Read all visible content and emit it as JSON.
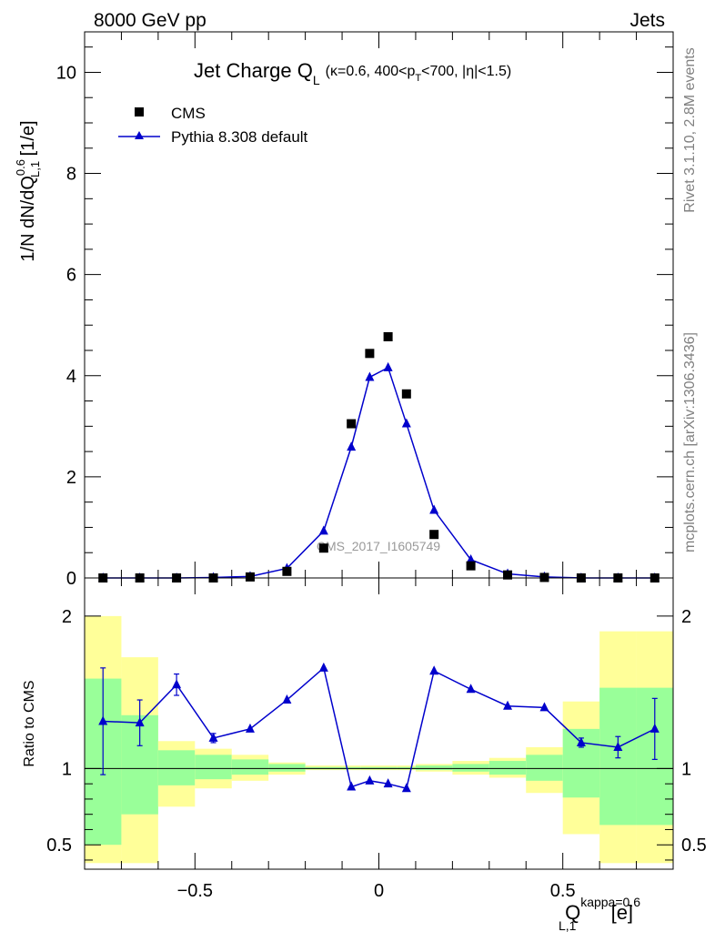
{
  "header": {
    "left": "8000 GeV pp",
    "right": "Jets"
  },
  "side_text": {
    "rivet": "Rivet 3.1.10,  2.8M events",
    "mcplots": "mcplots.cern.ch [arXiv:1306.3436]"
  },
  "watermark": "CMS_2017_I1605749",
  "colors": {
    "mc": "#0000cc",
    "data": "#000000",
    "band_outer": "#ffff99",
    "band_inner": "#99ff99"
  },
  "chart_data": [
    {
      "type": "scatter",
      "title": {
        "main": "Jet Charge Q",
        "main_sub": "L",
        "kin_a": "(κ=0.6, 400<p",
        "kin_sub": "T",
        "kin_b": "<700, |η|<1.5)"
      },
      "ylabel": {
        "a": "1/N dN/dQ",
        "sup": "0.6",
        "sub": "L,1",
        "b": " [1/e]"
      },
      "xlim": [
        -0.8,
        0.8
      ],
      "ylim": [
        0,
        10.8
      ],
      "yticks": [
        0,
        2,
        4,
        6,
        8,
        10
      ],
      "ytick_labels": [
        "0",
        "2",
        "4",
        "6",
        "8",
        "10"
      ],
      "legend": {
        "position": "top-left",
        "entries": [
          "CMS",
          "Pythia 8.308 default"
        ]
      },
      "series": [
        {
          "name": "CMS",
          "x": [
            -0.75,
            -0.65,
            -0.55,
            -0.45,
            -0.35,
            -0.25,
            -0.15,
            -0.075,
            -0.025,
            0.025,
            0.075,
            0.15,
            0.25,
            0.35,
            0.45,
            0.55,
            0.65,
            0.75
          ],
          "y": [
            0.0,
            0.0,
            0.0,
            0.0,
            0.02,
            0.13,
            0.59,
            3.05,
            4.44,
            4.77,
            3.64,
            0.86,
            0.24,
            0.06,
            0.01,
            0.0,
            0.0,
            0.0
          ]
        },
        {
          "name": "Pythia 8.308 default",
          "x": [
            -0.75,
            -0.65,
            -0.55,
            -0.45,
            -0.35,
            -0.25,
            -0.15,
            -0.075,
            -0.025,
            0.025,
            0.075,
            0.15,
            0.25,
            0.35,
            0.45,
            0.55,
            0.65,
            0.75
          ],
          "y": [
            0.0,
            0.0,
            0.0,
            0.01,
            0.03,
            0.19,
            0.93,
            2.59,
            3.97,
            4.16,
            3.05,
            1.34,
            0.36,
            0.08,
            0.02,
            0.0,
            0.0,
            0.0
          ]
        }
      ]
    },
    {
      "type": "line",
      "ylabel": "Ratio to CMS",
      "xlabel": {
        "a": "Q",
        "sup": "kappa=0.6",
        "sub": "L,1",
        "b": " [e]"
      },
      "xlim": [
        -0.8,
        0.8
      ],
      "ylim": [
        0.34,
        2.25
      ],
      "xticks": [
        -0.5,
        0,
        0.5
      ],
      "xtick_labels": [
        "−0.5",
        "0",
        "0.5"
      ],
      "yticks": [
        0.5,
        1,
        2
      ],
      "ytick_labels": [
        "0.5",
        "1",
        "2"
      ],
      "bins": [
        -0.8,
        -0.7,
        -0.6,
        -0.5,
        -0.4,
        -0.3,
        -0.2,
        -0.1,
        -0.05,
        0.0,
        0.05,
        0.1,
        0.2,
        0.3,
        0.4,
        0.5,
        0.6,
        0.7,
        0.8
      ],
      "band_outer": {
        "lo": [
          0.38,
          0.38,
          0.75,
          0.87,
          0.92,
          0.96,
          0.99,
          0.99,
          0.99,
          0.99,
          0.99,
          0.98,
          0.96,
          0.94,
          0.84,
          0.57,
          0.38,
          0.38
        ],
        "hi": [
          2.0,
          1.73,
          1.18,
          1.13,
          1.09,
          1.04,
          1.02,
          1.02,
          1.02,
          1.02,
          1.02,
          1.03,
          1.05,
          1.07,
          1.14,
          1.44,
          1.9,
          1.9
        ]
      },
      "band_inner": {
        "lo": [
          0.5,
          0.7,
          0.89,
          0.93,
          0.96,
          0.98,
          0.995,
          0.995,
          0.995,
          0.995,
          0.995,
          0.99,
          0.98,
          0.96,
          0.92,
          0.81,
          0.63,
          0.63
        ],
        "hi": [
          1.59,
          1.35,
          1.12,
          1.09,
          1.06,
          1.03,
          1.01,
          1.01,
          1.01,
          1.01,
          1.01,
          1.02,
          1.03,
          1.05,
          1.09,
          1.26,
          1.53,
          1.53
        ]
      },
      "series": [
        {
          "name": "Pythia 8.308 default",
          "x": [
            -0.75,
            -0.65,
            -0.55,
            -0.45,
            -0.35,
            -0.25,
            -0.15,
            -0.075,
            -0.025,
            0.025,
            0.075,
            0.15,
            0.25,
            0.35,
            0.45,
            0.55,
            0.65,
            0.75
          ],
          "y": [
            1.31,
            1.3,
            1.55,
            1.2,
            1.26,
            1.45,
            1.66,
            0.88,
            0.92,
            0.9,
            0.87,
            1.64,
            1.52,
            1.41,
            1.4,
            1.17,
            1.14,
            1.26
          ],
          "err": [
            0.35,
            0.15,
            0.07,
            0.03,
            0.0,
            0.0,
            0.0,
            0.0,
            0.0,
            0.0,
            0.0,
            0.0,
            0.0,
            0.0,
            0.0,
            0.03,
            0.07,
            0.2
          ]
        }
      ]
    }
  ]
}
